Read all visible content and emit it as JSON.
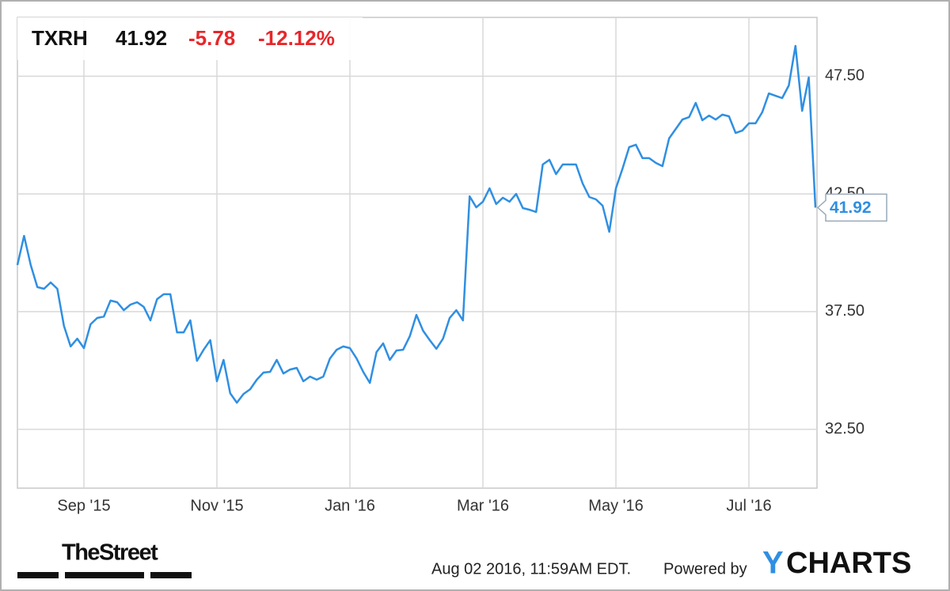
{
  "chart_data": {
    "type": "line",
    "header": {
      "ticker": "TXRH",
      "price": "41.92",
      "change": "-5.78",
      "change_pct": "-12.12%"
    },
    "categories": [
      null,
      null,
      null,
      null,
      null,
      null,
      null,
      null,
      null,
      null,
      "Sep '15",
      null,
      null,
      null,
      null,
      null,
      null,
      null,
      null,
      null,
      null,
      null,
      null,
      null,
      null,
      null,
      null,
      null,
      null,
      null,
      "Nov '15",
      null,
      null,
      null,
      null,
      null,
      null,
      null,
      null,
      null,
      null,
      null,
      null,
      null,
      null,
      null,
      null,
      null,
      null,
      null,
      "Jan '16",
      null,
      null,
      null,
      null,
      null,
      null,
      null,
      null,
      null,
      null,
      null,
      null,
      null,
      null,
      null,
      null,
      null,
      null,
      null,
      "Mar '16",
      null,
      null,
      null,
      null,
      null,
      null,
      null,
      null,
      null,
      null,
      null,
      null,
      null,
      null,
      null,
      null,
      null,
      null,
      null,
      "May '16",
      null,
      null,
      null,
      null,
      null,
      null,
      null,
      null,
      null,
      null,
      null,
      null,
      null,
      null,
      null,
      null,
      null,
      null,
      null,
      "Jul '16",
      null,
      null,
      null,
      null,
      null,
      null,
      null,
      null,
      null,
      null
    ],
    "series": [
      {
        "name": "TXRH",
        "color": "#2f8fe2",
        "values": [
          39.48,
          40.72,
          39.48,
          38.54,
          38.47,
          38.74,
          38.47,
          36.89,
          36.02,
          36.35,
          35.95,
          36.96,
          37.23,
          37.29,
          37.97,
          37.9,
          37.56,
          37.8,
          37.9,
          37.7,
          37.13,
          38.03,
          38.24,
          38.24,
          36.62,
          36.62,
          37.13,
          35.41,
          35.88,
          36.29,
          34.54,
          35.45,
          34.03,
          33.63,
          34.0,
          34.2,
          34.61,
          34.91,
          34.94,
          35.45,
          34.87,
          35.04,
          35.11,
          34.54,
          34.74,
          34.61,
          34.74,
          35.51,
          35.88,
          36.02,
          35.95,
          35.51,
          34.94,
          34.47,
          35.78,
          36.15,
          35.45,
          35.85,
          35.88,
          36.45,
          37.36,
          36.69,
          36.29,
          35.92,
          36.35,
          37.23,
          37.56,
          37.13,
          42.4,
          41.93,
          42.17,
          42.74,
          42.07,
          42.34,
          42.17,
          42.5,
          41.9,
          41.83,
          41.73,
          43.75,
          43.95,
          43.34,
          43.75,
          43.75,
          43.75,
          42.94,
          42.37,
          42.27,
          42.0,
          40.89,
          42.74,
          43.58,
          44.49,
          44.59,
          44.02,
          44.02,
          43.82,
          43.68,
          44.86,
          45.26,
          45.66,
          45.76,
          46.37,
          45.63,
          45.83,
          45.66,
          45.87,
          45.8,
          45.09,
          45.19,
          45.5,
          45.5,
          45.97,
          46.77,
          46.67,
          46.57,
          47.11,
          48.79,
          46.03,
          47.45,
          41.92
        ]
      }
    ],
    "ylim": [
      30,
      50
    ],
    "yticks": [
      {
        "value": 32.5,
        "label": "32.50"
      },
      {
        "value": 37.5,
        "label": "37.50"
      },
      {
        "value": 42.5,
        "label": "42.50"
      },
      {
        "value": 47.5,
        "label": "47.50"
      }
    ],
    "grid": true,
    "footer": {
      "source": "TheStreet",
      "timestamp": "Aug 02 2016, 11:59AM EDT.",
      "powered_by": "Powered by",
      "brand_y": "Y",
      "brand_rest": "CHARTS"
    }
  }
}
